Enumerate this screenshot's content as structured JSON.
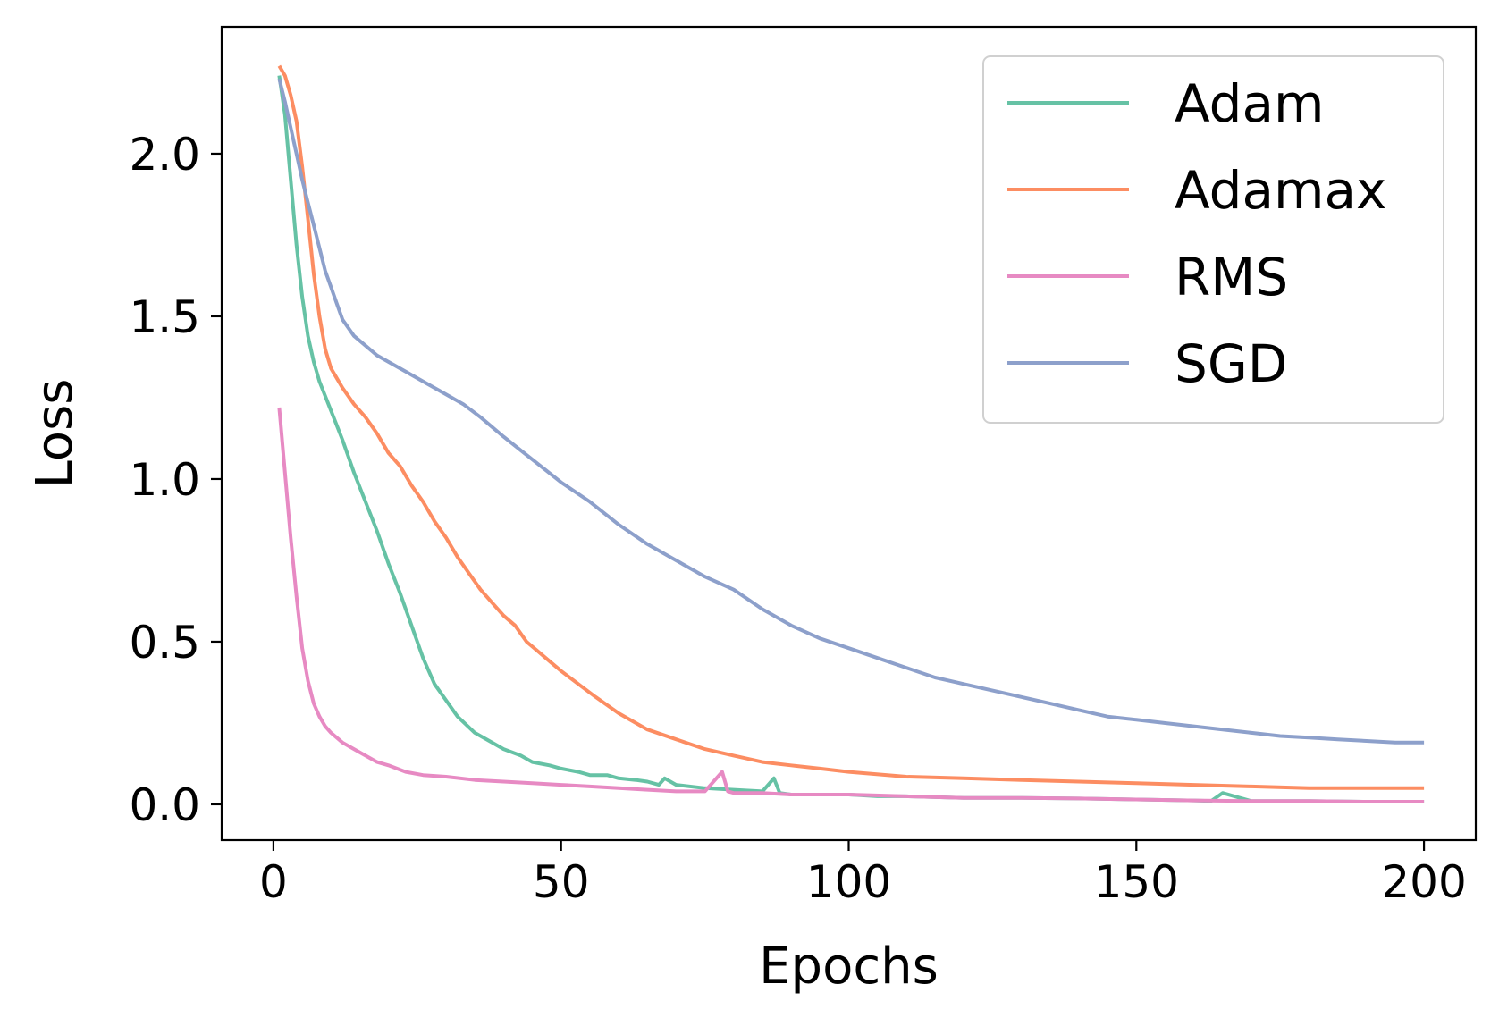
{
  "chart_data": {
    "type": "line",
    "title": "",
    "xlabel": "Epochs",
    "ylabel": "Loss",
    "xlim": [
      -9,
      209
    ],
    "ylim": [
      -0.11,
      2.39
    ],
    "xticks": [
      0,
      50,
      100,
      150,
      200
    ],
    "xtick_labels": [
      "0",
      "50",
      "100",
      "150",
      "200"
    ],
    "yticks": [
      0.0,
      0.5,
      1.0,
      1.5,
      2.0
    ],
    "ytick_labels": [
      "0.0",
      "0.5",
      "1.0",
      "1.5",
      "2.0"
    ],
    "grid": false,
    "legend_position": "top-right",
    "series": [
      {
        "name": "Adam",
        "color": "#66c2a5",
        "x": [
          1,
          2,
          3,
          4,
          5,
          6,
          7,
          8,
          10,
          12,
          14,
          16,
          18,
          20,
          22,
          24,
          26,
          28,
          30,
          32,
          35,
          38,
          40,
          43,
          45,
          48,
          50,
          53,
          55,
          58,
          60,
          63,
          65,
          67,
          68,
          70,
          75,
          80,
          85,
          87,
          88,
          90,
          95,
          100,
          105,
          110,
          120,
          130,
          140,
          150,
          160,
          163,
          165,
          170,
          180,
          190,
          200
        ],
        "values": [
          2.24,
          2.12,
          1.92,
          1.72,
          1.56,
          1.44,
          1.36,
          1.3,
          1.21,
          1.12,
          1.02,
          0.93,
          0.84,
          0.74,
          0.65,
          0.55,
          0.45,
          0.37,
          0.32,
          0.27,
          0.22,
          0.19,
          0.17,
          0.15,
          0.13,
          0.12,
          0.11,
          0.1,
          0.09,
          0.09,
          0.08,
          0.075,
          0.07,
          0.06,
          0.08,
          0.06,
          0.05,
          0.045,
          0.04,
          0.08,
          0.035,
          0.03,
          0.03,
          0.03,
          0.025,
          0.025,
          0.02,
          0.02,
          0.018,
          0.015,
          0.012,
          0.01,
          0.035,
          0.01,
          0.01,
          0.008,
          0.008
        ]
      },
      {
        "name": "Adamax",
        "color": "#fc8d62",
        "x": [
          1,
          2,
          3,
          4,
          5,
          6,
          7,
          8,
          9,
          10,
          12,
          14,
          16,
          18,
          20,
          22,
          24,
          26,
          28,
          30,
          32,
          34,
          36,
          38,
          40,
          42,
          44,
          46,
          48,
          50,
          53,
          56,
          60,
          65,
          70,
          75,
          80,
          85,
          90,
          95,
          100,
          110,
          120,
          130,
          140,
          150,
          160,
          170,
          180,
          190,
          200
        ],
        "values": [
          2.27,
          2.24,
          2.18,
          2.1,
          1.96,
          1.8,
          1.63,
          1.5,
          1.4,
          1.34,
          1.28,
          1.23,
          1.19,
          1.14,
          1.08,
          1.04,
          0.98,
          0.93,
          0.87,
          0.82,
          0.76,
          0.71,
          0.66,
          0.62,
          0.58,
          0.55,
          0.5,
          0.47,
          0.44,
          0.41,
          0.37,
          0.33,
          0.28,
          0.23,
          0.2,
          0.17,
          0.15,
          0.13,
          0.12,
          0.11,
          0.1,
          0.085,
          0.08,
          0.075,
          0.07,
          0.065,
          0.06,
          0.055,
          0.05,
          0.05,
          0.05
        ]
      },
      {
        "name": "RMS",
        "color": "#e78ac3",
        "x": [
          1,
          2,
          3,
          4,
          5,
          6,
          7,
          8,
          9,
          10,
          12,
          14,
          16,
          18,
          20,
          23,
          26,
          30,
          35,
          40,
          45,
          50,
          55,
          60,
          65,
          70,
          75,
          78,
          79,
          80,
          85,
          90,
          100,
          110,
          120,
          130,
          140,
          150,
          160,
          170,
          180,
          190,
          200
        ],
        "values": [
          1.22,
          1.02,
          0.82,
          0.64,
          0.48,
          0.38,
          0.31,
          0.27,
          0.24,
          0.22,
          0.19,
          0.17,
          0.15,
          0.13,
          0.12,
          0.1,
          0.09,
          0.085,
          0.075,
          0.07,
          0.065,
          0.06,
          0.055,
          0.05,
          0.045,
          0.04,
          0.04,
          0.1,
          0.04,
          0.035,
          0.035,
          0.03,
          0.03,
          0.025,
          0.02,
          0.02,
          0.018,
          0.015,
          0.012,
          0.01,
          0.01,
          0.008,
          0.008
        ]
      },
      {
        "name": "SGD",
        "color": "#8da0cb",
        "x": [
          1,
          2,
          3,
          4,
          5,
          6,
          7,
          8,
          9,
          10,
          11,
          12,
          14,
          16,
          18,
          20,
          23,
          26,
          30,
          33,
          36,
          40,
          45,
          50,
          55,
          60,
          65,
          70,
          75,
          80,
          85,
          90,
          95,
          100,
          105,
          110,
          115,
          120,
          125,
          130,
          135,
          140,
          145,
          150,
          155,
          160,
          165,
          170,
          175,
          180,
          185,
          190,
          195,
          200
        ],
        "values": [
          2.23,
          2.16,
          2.08,
          2.0,
          1.92,
          1.85,
          1.78,
          1.71,
          1.64,
          1.59,
          1.54,
          1.49,
          1.44,
          1.41,
          1.38,
          1.36,
          1.33,
          1.3,
          1.26,
          1.23,
          1.19,
          1.13,
          1.06,
          0.99,
          0.93,
          0.86,
          0.8,
          0.75,
          0.7,
          0.66,
          0.6,
          0.55,
          0.51,
          0.48,
          0.45,
          0.42,
          0.39,
          0.37,
          0.35,
          0.33,
          0.31,
          0.29,
          0.27,
          0.26,
          0.25,
          0.24,
          0.23,
          0.22,
          0.21,
          0.205,
          0.2,
          0.195,
          0.19,
          0.19
        ]
      }
    ]
  }
}
